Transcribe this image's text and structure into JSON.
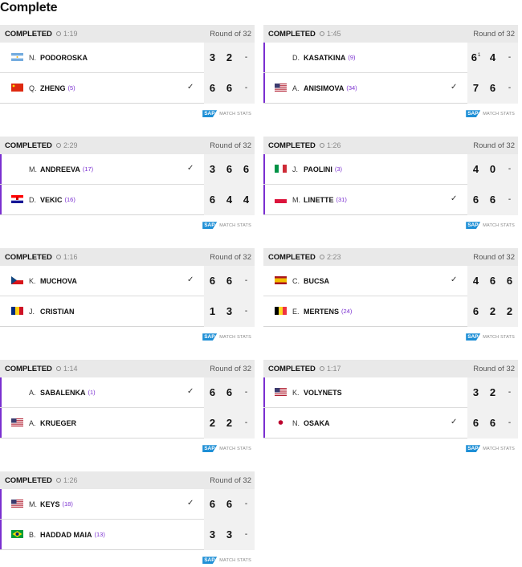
{
  "section_title": "Complete",
  "sap_label": "SAP",
  "match_stats_label": "MATCH STATS",
  "matches": [
    {
      "status": "COMPLETED",
      "duration": "1:19",
      "round": "Round of 32",
      "live_bar": false,
      "players": [
        {
          "flag": "ARG",
          "initial": "N.",
          "name": "PODOROSKA",
          "seed": "",
          "winner": false,
          "sets": [
            "3",
            "2",
            "-"
          ],
          "tiebreaks": [
            "",
            "",
            ""
          ]
        },
        {
          "flag": "CHN",
          "initial": "Q.",
          "name": "ZHENG",
          "seed": "(5)",
          "winner": true,
          "sets": [
            "6",
            "6",
            "-"
          ],
          "tiebreaks": [
            "",
            "",
            ""
          ]
        }
      ]
    },
    {
      "status": "COMPLETED",
      "duration": "1:45",
      "round": "Round of 32",
      "live_bar": true,
      "players": [
        {
          "flag": "",
          "initial": "D.",
          "name": "KASATKINA",
          "seed": "(9)",
          "winner": false,
          "sets": [
            "6",
            "4",
            "-"
          ],
          "tiebreaks": [
            "1",
            "",
            ""
          ]
        },
        {
          "flag": "USA",
          "initial": "A.",
          "name": "ANISIMOVA",
          "seed": "(34)",
          "winner": true,
          "sets": [
            "7",
            "6",
            "-"
          ],
          "tiebreaks": [
            "",
            "",
            ""
          ]
        }
      ]
    },
    {
      "status": "COMPLETED",
      "duration": "2:29",
      "round": "Round of 32",
      "live_bar": true,
      "players": [
        {
          "flag": "",
          "initial": "M.",
          "name": "ANDREEVA",
          "seed": "(17)",
          "winner": true,
          "sets": [
            "3",
            "6",
            "6"
          ],
          "tiebreaks": [
            "",
            "",
            ""
          ]
        },
        {
          "flag": "CRO",
          "initial": "D.",
          "name": "VEKIC",
          "seed": "(16)",
          "winner": false,
          "sets": [
            "6",
            "4",
            "4"
          ],
          "tiebreaks": [
            "",
            "",
            ""
          ]
        }
      ]
    },
    {
      "status": "COMPLETED",
      "duration": "1:26",
      "round": "Round of 32",
      "live_bar": true,
      "players": [
        {
          "flag": "ITA",
          "initial": "J.",
          "name": "PAOLINI",
          "seed": "(3)",
          "winner": false,
          "sets": [
            "4",
            "0",
            "-"
          ],
          "tiebreaks": [
            "",
            "",
            ""
          ]
        },
        {
          "flag": "POL",
          "initial": "M.",
          "name": "LINETTE",
          "seed": "(31)",
          "winner": true,
          "sets": [
            "6",
            "6",
            "-"
          ],
          "tiebreaks": [
            "",
            "",
            ""
          ]
        }
      ]
    },
    {
      "status": "COMPLETED",
      "duration": "1:16",
      "round": "Round of 32",
      "live_bar": false,
      "players": [
        {
          "flag": "CZE",
          "initial": "K.",
          "name": "MUCHOVA",
          "seed": "",
          "winner": true,
          "sets": [
            "6",
            "6",
            "-"
          ],
          "tiebreaks": [
            "",
            "",
            ""
          ]
        },
        {
          "flag": "ROU",
          "initial": "J.",
          "name": "CRISTIAN",
          "seed": "",
          "winner": false,
          "sets": [
            "1",
            "3",
            "-"
          ],
          "tiebreaks": [
            "",
            "",
            ""
          ]
        }
      ]
    },
    {
      "status": "COMPLETED",
      "duration": "2:23",
      "round": "Round of 32",
      "live_bar": false,
      "players": [
        {
          "flag": "ESP",
          "initial": "C.",
          "name": "BUCSA",
          "seed": "",
          "winner": true,
          "sets": [
            "4",
            "6",
            "6"
          ],
          "tiebreaks": [
            "",
            "",
            ""
          ]
        },
        {
          "flag": "BEL",
          "initial": "E.",
          "name": "MERTENS",
          "seed": "(24)",
          "winner": false,
          "sets": [
            "6",
            "2",
            "2"
          ],
          "tiebreaks": [
            "",
            "",
            ""
          ]
        }
      ]
    },
    {
      "status": "COMPLETED",
      "duration": "1:14",
      "round": "Round of 32",
      "live_bar": true,
      "players": [
        {
          "flag": "",
          "initial": "A.",
          "name": "SABALENKA",
          "seed": "(1)",
          "winner": true,
          "sets": [
            "6",
            "6",
            "-"
          ],
          "tiebreaks": [
            "",
            "",
            ""
          ]
        },
        {
          "flag": "USA",
          "initial": "A.",
          "name": "KRUEGER",
          "seed": "",
          "winner": false,
          "sets": [
            "2",
            "2",
            "-"
          ],
          "tiebreaks": [
            "",
            "",
            ""
          ]
        }
      ]
    },
    {
      "status": "COMPLETED",
      "duration": "1:17",
      "round": "Round of 32",
      "live_bar": true,
      "players": [
        {
          "flag": "USA",
          "initial": "K.",
          "name": "VOLYNETS",
          "seed": "",
          "winner": false,
          "sets": [
            "3",
            "2",
            "-"
          ],
          "tiebreaks": [
            "",
            "",
            ""
          ]
        },
        {
          "flag": "JPN",
          "initial": "N.",
          "name": "OSAKA",
          "seed": "",
          "winner": true,
          "sets": [
            "6",
            "6",
            "-"
          ],
          "tiebreaks": [
            "",
            "",
            ""
          ]
        }
      ]
    },
    {
      "status": "COMPLETED",
      "duration": "1:26",
      "round": "Round of 32",
      "live_bar": true,
      "players": [
        {
          "flag": "USA",
          "initial": "M.",
          "name": "KEYS",
          "seed": "(18)",
          "winner": true,
          "sets": [
            "6",
            "6",
            "-"
          ],
          "tiebreaks": [
            "",
            "",
            ""
          ]
        },
        {
          "flag": "BRA",
          "initial": "B.",
          "name": "HADDAD MAIA",
          "seed": "(13)",
          "winner": false,
          "sets": [
            "3",
            "3",
            "-"
          ],
          "tiebreaks": [
            "",
            "",
            ""
          ]
        }
      ]
    }
  ]
}
